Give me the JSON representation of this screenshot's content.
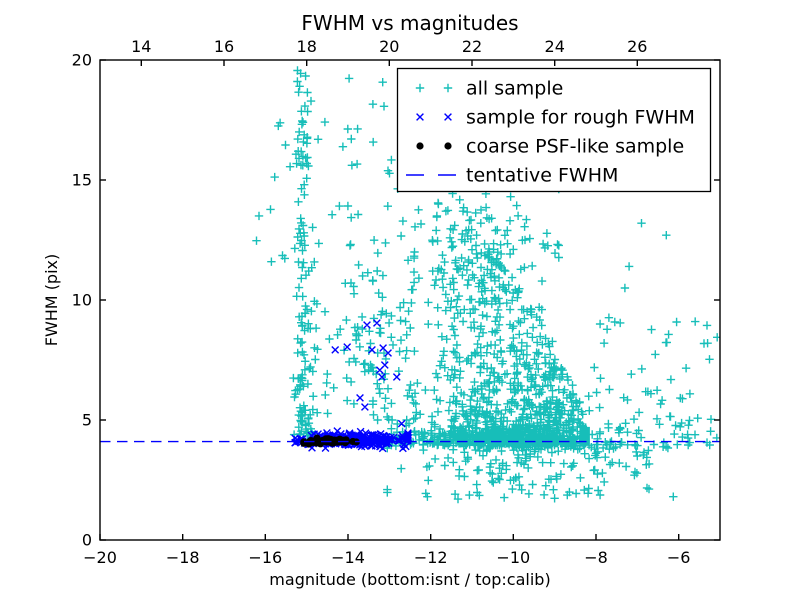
{
  "figure": {
    "title": "FWHM vs magnitudes"
  },
  "axes": {
    "xlabel": "magnitude (bottom:isnt / top:calib)",
    "ylabel": "FWHM (pix)",
    "xlim": [
      -20,
      -5
    ],
    "ylim": [
      0,
      20
    ],
    "bottom_ticks": {
      "values": [
        -20,
        -18,
        -16,
        -14,
        -12,
        -10,
        -8,
        -6
      ],
      "labels": [
        "−20",
        "−18",
        "−16",
        "−14",
        "−12",
        "−10",
        "−8",
        "−6"
      ]
    },
    "top_ticks": {
      "values": [
        14,
        16,
        18,
        20,
        22,
        24,
        26
      ],
      "labels": [
        "14",
        "16",
        "18",
        "20",
        "22",
        "24",
        "26"
      ],
      "calib_minus_inst_offset": 33
    },
    "left_ticks": {
      "values": [
        0,
        5,
        10,
        15,
        20
      ],
      "labels": [
        "0",
        "5",
        "10",
        "15",
        "20"
      ]
    }
  },
  "colors": {
    "all_sample": "#17beb9",
    "rough_fwhm": "#0000ff",
    "psf_like": "#000000",
    "tentative": "#0000ff"
  },
  "legend": {
    "items": [
      {
        "label": "all sample",
        "marker": "plus",
        "color_key": "all_sample"
      },
      {
        "label": "sample for rough FWHM",
        "marker": "x",
        "color_key": "rough_fwhm"
      },
      {
        "label": "coarse PSF-like sample",
        "marker": "dot",
        "color_key": "psf_like"
      },
      {
        "label": "tentative FWHM",
        "marker": "dashed-line",
        "color_key": "tentative"
      }
    ]
  },
  "chart_data": {
    "type": "scatter",
    "title": "FWHM vs magnitudes",
    "xlabel": "magnitude (bottom:isnt / top:calib)",
    "ylabel": "FWHM (pix)",
    "xlim": [
      -20,
      -5
    ],
    "ylim": [
      0,
      20
    ],
    "grid": false,
    "legend_position": "upper right",
    "tentative_fwhm": 4.1,
    "representation_note": "Dense scatter (~2200 pts) captured as seeded statistical clusters read off the pixels; explicit points listed where individually readable.",
    "series": [
      {
        "name": "all sample",
        "marker": "plus",
        "color_key": "all_sample",
        "clusters": [
          {
            "kind": "column",
            "cx": -15.08,
            "sx": 0.11,
            "clx0": -15.4,
            "clx1": -14.78,
            "y0": 4.35,
            "y1": 19.5,
            "p": 1.7,
            "count": 130
          },
          {
            "kind": "box",
            "x0": -15.7,
            "x1": -12.2,
            "y0": 12.0,
            "y1": 19.6,
            "count": 48
          },
          {
            "kind": "box",
            "x0": -16.25,
            "x1": -15.45,
            "y0": 8.5,
            "y1": 15.5,
            "count": 7
          },
          {
            "kind": "powerbox",
            "x0": -14.9,
            "x1": -12.35,
            "y0": 5.0,
            "y1": 12.2,
            "p": 1.35,
            "count": 90
          },
          {
            "kind": "gauss",
            "cx": -13.5,
            "cy": 8.1,
            "sx": 0.3,
            "sy": 0.75,
            "clx0": -14.2,
            "clx1": -12.8,
            "cly0": 6.0,
            "cly1": 10.0,
            "count": 22
          },
          {
            "kind": "wedge",
            "cx": -9.9,
            "sx": 1.25,
            "clx0": -12.95,
            "clx1": -8.25,
            "xL": -12.95,
            "xR": -8.25,
            "yb": 4.7,
            "h": 12.5,
            "q": 0.7,
            "ymaxcap": 13.8,
            "y0": 4.03,
            "p": 2.8,
            "count": 1150
          },
          {
            "kind": "gauss",
            "cx": -10.6,
            "cy": 4.3,
            "sx": 1.3,
            "sy": 0.22,
            "clx0": -12.95,
            "clx1": -8.3,
            "cly0": 3.95,
            "cly1": 5.0,
            "count": 260
          },
          {
            "kind": "shelf",
            "cx": -9.4,
            "sx": 1.55,
            "clx0": -13.05,
            "clx1": -5.25,
            "y0": 3.98,
            "span": 2.3,
            "p": 2.3,
            "count": 215
          },
          {
            "kind": "gauss",
            "cx": -10.7,
            "cy": 12.4,
            "sx": 0.95,
            "sy": 1.5,
            "clx0": -12.4,
            "clx1": -8.9,
            "cly0": 9.6,
            "cly1": 16.2,
            "count": 130
          },
          {
            "kind": "powerbox",
            "x0": -8.2,
            "x1": -5.05,
            "y0": 4.05,
            "y1": 9.35,
            "p": 2.0,
            "count": 80
          }
        ],
        "points": [
          [
            -7.2,
            11.4
          ],
          [
            -7.3,
            10.5
          ],
          [
            -6.9,
            13.2
          ],
          [
            -6.3,
            12.7
          ],
          [
            -5.6,
            9.1
          ],
          [
            -5.3,
            8.2
          ],
          [
            -7.9,
            9.0
          ]
        ]
      },
      {
        "name": "sample for rough FWHM",
        "marker": "x",
        "color_key": "rough_fwhm",
        "clusters": [
          {
            "kind": "gauss",
            "cx": -13.85,
            "cy": 4.17,
            "sx": 0.6,
            "sy": 0.13,
            "clx0": -15.28,
            "clx1": -12.55,
            "cly0": 3.82,
            "cly1": 4.58,
            "count": 280
          }
        ],
        "points": [
          [
            -13.54,
            8.96
          ],
          [
            -13.3,
            9.04
          ],
          [
            -14.31,
            7.92
          ],
          [
            -14.02,
            8.04
          ],
          [
            -13.42,
            7.92
          ],
          [
            -13.15,
            8.0
          ],
          [
            -13.03,
            7.79
          ],
          [
            -13.23,
            7.08
          ],
          [
            -13.11,
            7.29
          ],
          [
            -12.82,
            6.79
          ],
          [
            -13.18,
            6.79
          ],
          [
            -13.71,
            5.92
          ],
          [
            -13.59,
            5.54
          ],
          [
            -12.7,
            4.85
          ]
        ]
      },
      {
        "name": "coarse PSF-like sample",
        "marker": "dot",
        "color_key": "psf_like",
        "clusters": [
          {
            "kind": "gauss",
            "cx": -14.45,
            "cy": 4.12,
            "sx": 0.3,
            "sy": 0.055,
            "clx0": -15.07,
            "clx1": -13.8,
            "cly0": 4.0,
            "cly1": 4.28,
            "count": 80
          }
        ],
        "points": []
      },
      {
        "name": "tentative FWHM",
        "type": "hline",
        "y": 4.1,
        "style": "dashed",
        "color_key": "tentative"
      }
    ]
  }
}
